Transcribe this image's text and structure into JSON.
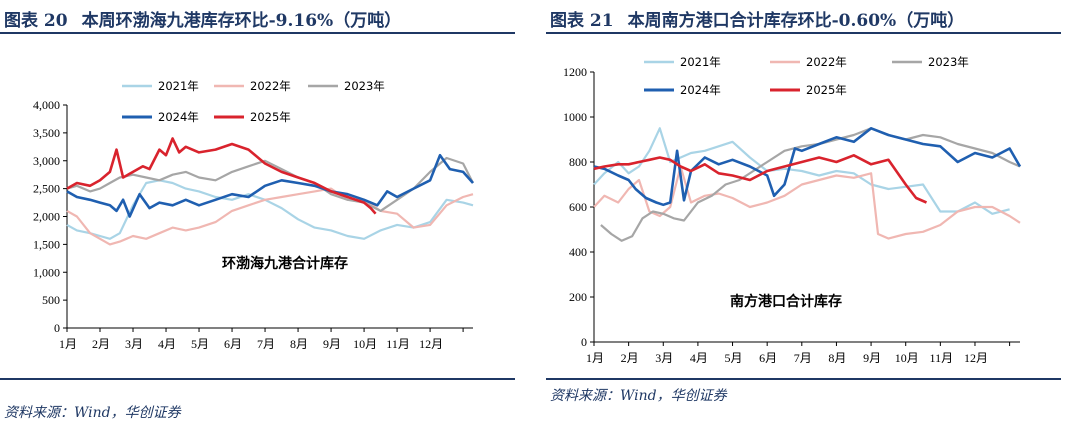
{
  "colors": {
    "2021": "#a9d4e6",
    "2022": "#f0b7b2",
    "2023": "#a6a6a6",
    "2024": "#1f5fb0",
    "2025": "#d9232d"
  },
  "chart_data": [
    {
      "type": "line",
      "figure_label": "图表 20",
      "title": "本周环渤海九港库存环比-9.16%（万吨）",
      "annotation": "环渤海九港合计库存",
      "source": "资料来源：Wind，华创证券",
      "xlabel": "",
      "ylabel": "",
      "x_range": [
        0,
        12.3
      ],
      "months": [
        "1月",
        "2月",
        "3月",
        "4月",
        "5月",
        "6月",
        "7月",
        "8月",
        "9月",
        "10月",
        "11月",
        "12月"
      ],
      "ylim": [
        0,
        4000
      ],
      "yticks": [
        0,
        500,
        1000,
        1500,
        2000,
        2500,
        3000,
        3500,
        4000
      ],
      "ytick_labels": [
        "0",
        "500",
        "1,000",
        "1,500",
        "2,000",
        "2,500",
        "3,000",
        "3,500",
        "4,000"
      ],
      "legend": "top, two rows",
      "series": [
        {
          "name": "2021年",
          "key": "2021",
          "x": [
            0,
            0.3,
            0.7,
            1.0,
            1.3,
            1.6,
            2.0,
            2.4,
            2.8,
            3.2,
            3.6,
            4.0,
            4.5,
            5.0,
            5.5,
            6.0,
            6.5,
            7.0,
            7.5,
            8.0,
            8.5,
            9.0,
            9.5,
            10.0,
            10.5,
            11.0,
            11.5,
            12.0,
            12.3
          ],
          "y": [
            1850,
            1750,
            1700,
            1650,
            1600,
            1700,
            2200,
            2600,
            2650,
            2600,
            2500,
            2450,
            2350,
            2300,
            2400,
            2300,
            2150,
            1950,
            1800,
            1750,
            1650,
            1600,
            1750,
            1850,
            1800,
            1900,
            2300,
            2250,
            2200
          ]
        },
        {
          "name": "2022年",
          "key": "2022",
          "x": [
            0,
            0.3,
            0.7,
            1.0,
            1.3,
            1.6,
            2.0,
            2.4,
            2.8,
            3.2,
            3.6,
            4.0,
            4.5,
            5.0,
            5.5,
            6.0,
            6.5,
            7.0,
            7.5,
            8.0,
            8.5,
            9.0,
            9.5,
            10.0,
            10.5,
            11.0,
            11.5,
            12.0,
            12.3
          ],
          "y": [
            2100,
            2000,
            1700,
            1600,
            1500,
            1550,
            1650,
            1600,
            1700,
            1800,
            1750,
            1800,
            1900,
            2100,
            2200,
            2300,
            2350,
            2400,
            2450,
            2500,
            2300,
            2300,
            2100,
            2050,
            1800,
            1850,
            2200,
            2350,
            2400
          ]
        },
        {
          "name": "2023年",
          "key": "2023",
          "x": [
            0,
            0.3,
            0.7,
            1.0,
            1.3,
            1.6,
            2.0,
            2.4,
            2.8,
            3.2,
            3.6,
            4.0,
            4.5,
            5.0,
            5.5,
            6.0,
            6.5,
            7.0,
            7.5,
            8.0,
            8.5,
            9.0,
            9.5,
            10.0,
            10.5,
            11.0,
            11.5,
            12.0,
            12.3
          ],
          "y": [
            2500,
            2550,
            2450,
            2500,
            2600,
            2700,
            2750,
            2700,
            2650,
            2750,
            2800,
            2700,
            2650,
            2800,
            2900,
            3000,
            2850,
            2700,
            2600,
            2400,
            2300,
            2250,
            2100,
            2300,
            2500,
            2800,
            3050,
            2950,
            2600
          ]
        },
        {
          "name": "2024年",
          "key": "2024",
          "x": [
            0,
            0.3,
            0.7,
            1.0,
            1.3,
            1.5,
            1.7,
            1.9,
            2.2,
            2.5,
            2.8,
            3.2,
            3.6,
            4.0,
            4.5,
            5.0,
            5.5,
            6.0,
            6.5,
            7.0,
            7.5,
            8.0,
            8.5,
            9.0,
            9.4,
            9.7,
            10.0,
            10.5,
            11.0,
            11.3,
            11.6,
            12.0,
            12.3
          ],
          "y": [
            2450,
            2350,
            2300,
            2250,
            2200,
            2100,
            2300,
            2000,
            2400,
            2150,
            2250,
            2200,
            2300,
            2200,
            2300,
            2400,
            2350,
            2550,
            2650,
            2600,
            2550,
            2450,
            2400,
            2300,
            2200,
            2450,
            2350,
            2500,
            2650,
            3100,
            2850,
            2800,
            2600
          ]
        },
        {
          "name": "2025年",
          "key": "2025",
          "x": [
            0,
            0.3,
            0.7,
            1.0,
            1.3,
            1.5,
            1.7,
            2.0,
            2.3,
            2.5,
            2.8,
            3.0,
            3.2,
            3.4,
            3.6,
            4.0,
            4.5,
            5.0,
            5.5,
            6.0,
            6.5,
            7.0,
            7.5,
            8.0,
            8.5,
            9.0,
            9.2,
            9.35
          ],
          "y": [
            2500,
            2600,
            2550,
            2650,
            2800,
            3200,
            2700,
            2800,
            2900,
            2850,
            3200,
            3100,
            3400,
            3150,
            3250,
            3150,
            3200,
            3300,
            3200,
            2950,
            2800,
            2700,
            2600,
            2450,
            2350,
            2250,
            2150,
            2050
          ]
        }
      ]
    },
    {
      "type": "line",
      "figure_label": "图表 21",
      "title": "本周南方港口合计库存环比-0.60%（万吨）",
      "annotation": "南方港口合计库存",
      "source": "资料来源：Wind，华创证券",
      "xlabel": "",
      "ylabel": "",
      "x_range": [
        0,
        12.3
      ],
      "months": [
        "1月",
        "2月",
        "3月",
        "4月",
        "5月",
        "6月",
        "7月",
        "8月",
        "9月",
        "10月",
        "11月",
        "12月"
      ],
      "ylim": [
        0,
        1200
      ],
      "yticks": [
        0,
        200,
        400,
        600,
        800,
        1000,
        1200
      ],
      "ytick_labels": [
        "0",
        "200",
        "400",
        "600",
        "800",
        "1000",
        "1200"
      ],
      "legend": "top, two rows",
      "series": [
        {
          "name": "2021年",
          "key": "2021",
          "x": [
            0,
            0.3,
            0.7,
            1.0,
            1.3,
            1.6,
            1.9,
            2.2,
            2.5,
            2.8,
            3.2,
            3.6,
            4.0,
            4.5,
            5.0,
            5.5,
            6.0,
            6.5,
            7.0,
            7.5,
            8.0,
            8.5,
            9.0,
            9.5,
            10.0,
            10.5,
            11.0,
            11.5,
            12.0
          ],
          "y": [
            700,
            750,
            800,
            750,
            780,
            850,
            950,
            800,
            820,
            840,
            850,
            870,
            890,
            820,
            760,
            770,
            760,
            740,
            760,
            750,
            700,
            680,
            690,
            700,
            580,
            580,
            620,
            570,
            590
          ]
        },
        {
          "name": "2022年",
          "key": "2022",
          "x": [
            0,
            0.3,
            0.7,
            1.0,
            1.3,
            1.6,
            1.9,
            2.2,
            2.5,
            2.8,
            3.2,
            3.6,
            4.0,
            4.5,
            5.0,
            5.5,
            6.0,
            6.5,
            7.0,
            7.5,
            8.0,
            8.2,
            8.5,
            9.0,
            9.5,
            10.0,
            10.5,
            11.0,
            11.5,
            12.0,
            12.3
          ],
          "y": [
            600,
            650,
            620,
            680,
            720,
            580,
            560,
            600,
            780,
            620,
            650,
            660,
            640,
            600,
            620,
            650,
            700,
            720,
            740,
            730,
            750,
            480,
            460,
            480,
            490,
            520,
            580,
            600,
            600,
            560,
            530
          ]
        },
        {
          "name": "2023年",
          "key": "2023",
          "x": [
            0.2,
            0.5,
            0.8,
            1.1,
            1.4,
            1.7,
            2.0,
            2.3,
            2.6,
            3.0,
            3.4,
            3.8,
            4.2,
            4.6,
            5.0,
            5.5,
            6.0,
            6.5,
            7.0,
            7.5,
            8.0,
            8.5,
            9.0,
            9.5,
            10.0,
            10.5,
            11.0,
            11.5,
            12.0,
            12.3
          ],
          "y": [
            520,
            480,
            450,
            470,
            550,
            580,
            570,
            550,
            540,
            620,
            650,
            700,
            720,
            760,
            800,
            850,
            870,
            880,
            900,
            920,
            950,
            920,
            900,
            920,
            910,
            880,
            860,
            840,
            800,
            780
          ]
        },
        {
          "name": "2024年",
          "key": "2024",
          "x": [
            0,
            0.3,
            0.7,
            1.0,
            1.2,
            1.5,
            1.8,
            2.0,
            2.2,
            2.4,
            2.6,
            2.8,
            3.2,
            3.6,
            4.0,
            4.5,
            5.0,
            5.2,
            5.5,
            5.8,
            6.0,
            6.5,
            7.0,
            7.5,
            8.0,
            8.5,
            9.0,
            9.5,
            10.0,
            10.5,
            11.0,
            11.5,
            12.0,
            12.3
          ],
          "y": [
            780,
            770,
            740,
            720,
            680,
            640,
            620,
            610,
            620,
            850,
            630,
            760,
            820,
            790,
            810,
            780,
            740,
            650,
            700,
            860,
            850,
            880,
            910,
            890,
            950,
            920,
            900,
            880,
            870,
            800,
            840,
            820,
            860,
            780
          ]
        },
        {
          "name": "2025年",
          "key": "2025",
          "x": [
            0,
            0.3,
            0.7,
            1.0,
            1.3,
            1.6,
            1.9,
            2.2,
            2.5,
            2.8,
            3.2,
            3.6,
            4.0,
            4.5,
            5.0,
            5.5,
            6.0,
            6.5,
            7.0,
            7.5,
            8.0,
            8.5,
            9.0,
            9.3,
            9.6
          ],
          "y": [
            770,
            780,
            790,
            790,
            800,
            810,
            820,
            810,
            780,
            760,
            790,
            750,
            740,
            720,
            760,
            780,
            800,
            820,
            800,
            830,
            790,
            810,
            700,
            640,
            620
          ]
        }
      ]
    }
  ]
}
